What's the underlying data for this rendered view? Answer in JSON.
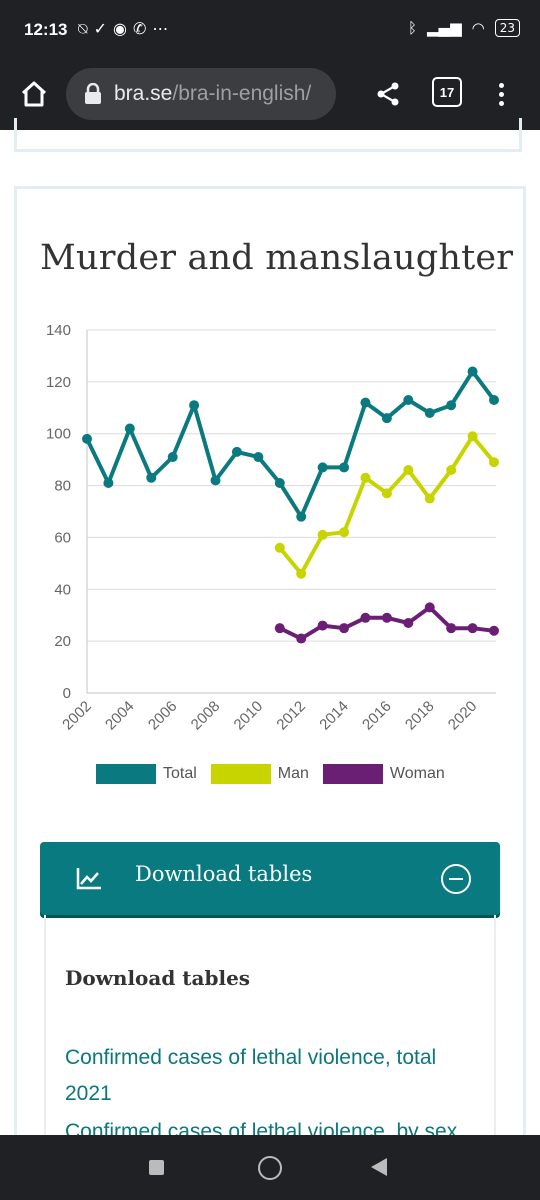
{
  "status_bar": {
    "time": "12:13",
    "left_icons": [
      "silent-icon",
      "check-icon",
      "app-icon",
      "whatsapp-icon",
      "more-icon"
    ],
    "right_icons": [
      "bluetooth-icon",
      "signal-icon",
      "wifi-icon",
      "battery-icon"
    ],
    "battery": "23"
  },
  "browser": {
    "url_domain": "bra.se",
    "url_path": "/bra-in-english/",
    "tab_count": "17"
  },
  "card": {
    "title": "Murder and manslaughter"
  },
  "chart_data": {
    "type": "line",
    "title": "Murder and manslaughter",
    "x": [
      2002,
      2003,
      2004,
      2005,
      2006,
      2007,
      2008,
      2009,
      2010,
      2011,
      2012,
      2013,
      2014,
      2015,
      2016,
      2017,
      2018,
      2019,
      2020,
      2021
    ],
    "x_tick_labels": [
      "2002",
      "2004",
      "2006",
      "2008",
      "2010",
      "2012",
      "2014",
      "2016",
      "2018",
      "2020"
    ],
    "y_ticks": [
      0,
      20,
      40,
      60,
      80,
      100,
      120,
      140
    ],
    "ylim": [
      0,
      140
    ],
    "grid": true,
    "legend_position": "bottom",
    "series": [
      {
        "name": "Total",
        "color": "#0b7a80",
        "x": [
          2002,
          2003,
          2004,
          2005,
          2006,
          2007,
          2008,
          2009,
          2010,
          2011,
          2012,
          2013,
          2014,
          2015,
          2016,
          2017,
          2018,
          2019,
          2020,
          2021
        ],
        "values": [
          98,
          81,
          102,
          83,
          91,
          111,
          82,
          93,
          91,
          81,
          68,
          87,
          87,
          112,
          106,
          113,
          108,
          111,
          124,
          113
        ]
      },
      {
        "name": "Man",
        "color": "#c8d400",
        "x": [
          2011,
          2012,
          2013,
          2014,
          2015,
          2016,
          2017,
          2018,
          2019,
          2020,
          2021
        ],
        "values": [
          56,
          46,
          61,
          62,
          83,
          77,
          86,
          75,
          86,
          99,
          89
        ]
      },
      {
        "name": "Woman",
        "color": "#6a1f74",
        "x": [
          2011,
          2012,
          2013,
          2014,
          2015,
          2016,
          2017,
          2018,
          2019,
          2020,
          2021
        ],
        "values": [
          25,
          21,
          26,
          25,
          29,
          29,
          27,
          33,
          25,
          25,
          24
        ]
      }
    ]
  },
  "download": {
    "button_label": "Download tables",
    "heading": "Download tables",
    "links": [
      "Confirmed cases of lethal violence, total 2021",
      "Confirmed cases of lethal violence, by sex"
    ]
  },
  "nav_bar": {
    "icons": [
      "recents-icon",
      "home-nav-icon",
      "back-icon"
    ]
  }
}
